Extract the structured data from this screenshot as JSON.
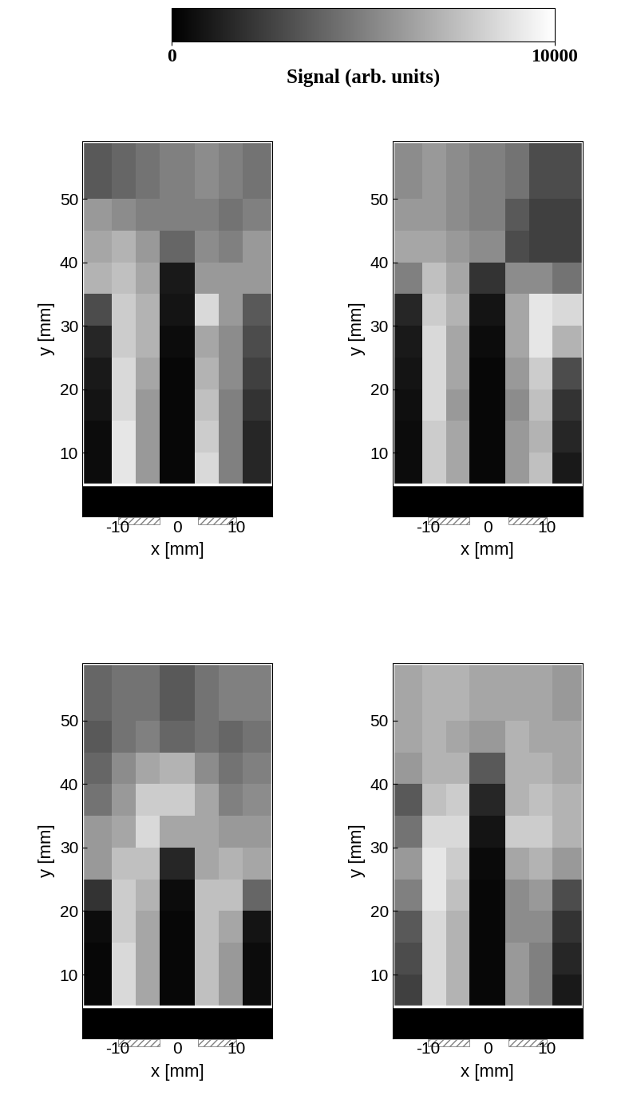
{
  "colorbar": {
    "label": "Signal (arb. units)",
    "range": [
      0,
      10000
    ],
    "ticks": [
      0,
      10000
    ]
  },
  "chart_data": [
    {
      "type": "heatmap",
      "xlabel": "x [mm]",
      "ylabel": "y [mm]",
      "xlim": [
        -16,
        16
      ],
      "ylim": [
        0,
        59
      ],
      "xticks": [
        -10,
        0,
        10
      ],
      "yticks": [
        10,
        20,
        30,
        40,
        50
      ],
      "hatched_spans": [
        [
          -10,
          -3
        ],
        [
          3.5,
          10
        ]
      ],
      "x_edges": [
        -16,
        -11,
        -7,
        -3,
        3,
        7,
        11,
        16
      ],
      "y_edges": [
        0,
        5,
        10,
        15,
        20,
        25,
        30,
        35,
        40,
        45,
        50,
        59
      ],
      "cells": [
        [
          0,
          0,
          0,
          0,
          0,
          0,
          0
        ],
        [
          500,
          9000,
          6000,
          300,
          8500,
          5000,
          1500
        ],
        [
          500,
          9000,
          6000,
          300,
          8000,
          5000,
          1500
        ],
        [
          800,
          8500,
          6000,
          300,
          7500,
          5000,
          2000
        ],
        [
          1000,
          8500,
          6500,
          300,
          7000,
          5500,
          2500
        ],
        [
          1500,
          8000,
          7000,
          500,
          6500,
          5500,
          3000
        ],
        [
          3000,
          8000,
          7000,
          800,
          8500,
          6000,
          3500
        ],
        [
          7000,
          7500,
          6500,
          1000,
          6000,
          6000,
          6000
        ],
        [
          6500,
          7000,
          6000,
          4000,
          5500,
          5000,
          6000
        ],
        [
          6000,
          5500,
          5000,
          5000,
          5000,
          4500,
          5000
        ],
        [
          3500,
          4000,
          4500,
          5000,
          5500,
          5000,
          4500
        ]
      ]
    },
    {
      "type": "heatmap",
      "xlabel": "x [mm]",
      "ylabel": "y [mm]",
      "xlim": [
        -16,
        16
      ],
      "ylim": [
        0,
        59
      ],
      "xticks": [
        -10,
        0,
        10
      ],
      "yticks": [
        10,
        20,
        30,
        40,
        50
      ],
      "hatched_spans": [
        [
          -10,
          -3
        ],
        [
          3.5,
          10
        ]
      ],
      "x_edges": [
        -16,
        -11,
        -7,
        -3,
        3,
        7,
        11,
        16
      ],
      "y_edges": [
        0,
        5,
        10,
        15,
        20,
        25,
        30,
        35,
        40,
        45,
        50,
        59
      ],
      "cells": [
        [
          0,
          0,
          0,
          0,
          0,
          0,
          0
        ],
        [
          500,
          8000,
          6500,
          300,
          6000,
          7500,
          1000
        ],
        [
          500,
          8000,
          6500,
          300,
          6000,
          7000,
          1500
        ],
        [
          600,
          8500,
          6000,
          300,
          5500,
          7500,
          2000
        ],
        [
          800,
          8500,
          6500,
          300,
          6000,
          8000,
          3000
        ],
        [
          1000,
          8500,
          6500,
          500,
          6500,
          9000,
          7000
        ],
        [
          1500,
          8000,
          7000,
          800,
          6500,
          9000,
          8500
        ],
        [
          5000,
          7500,
          6500,
          2000,
          5500,
          5500,
          4500
        ],
        [
          6500,
          6500,
          6000,
          5500,
          3000,
          2500,
          2500
        ],
        [
          6000,
          6000,
          5500,
          5000,
          3500,
          2500,
          2500
        ],
        [
          5500,
          6000,
          5500,
          5000,
          4500,
          3000,
          3000
        ]
      ]
    },
    {
      "type": "heatmap",
      "xlabel": "x [mm]",
      "ylabel": "y [mm]",
      "xlim": [
        -16,
        16
      ],
      "ylim": [
        0,
        59
      ],
      "xticks": [
        -10,
        0,
        10
      ],
      "yticks": [
        10,
        20,
        30,
        40,
        50
      ],
      "hatched_spans": [
        [
          -10,
          -3
        ],
        [
          3.5,
          10
        ]
      ],
      "x_edges": [
        -16,
        -11,
        -7,
        -3,
        3,
        7,
        11,
        16
      ],
      "y_edges": [
        0,
        5,
        10,
        15,
        20,
        25,
        30,
        35,
        40,
        45,
        50,
        59
      ],
      "cells": [
        [
          0,
          0,
          0,
          0,
          0,
          0,
          0
        ],
        [
          300,
          8500,
          6500,
          300,
          7500,
          6000,
          500
        ],
        [
          300,
          8500,
          6500,
          300,
          7500,
          6000,
          500
        ],
        [
          500,
          8000,
          6500,
          300,
          7500,
          6500,
          800
        ],
        [
          2000,
          8000,
          7000,
          500,
          7500,
          7500,
          4000
        ],
        [
          6000,
          7500,
          7500,
          1500,
          6500,
          7000,
          6500
        ],
        [
          6000,
          6500,
          8500,
          6500,
          6500,
          6000,
          6000
        ],
        [
          4500,
          6000,
          8000,
          8000,
          6500,
          5000,
          5500
        ],
        [
          4000,
          5500,
          6500,
          7000,
          5500,
          4500,
          5000
        ],
        [
          3500,
          4500,
          5000,
          4000,
          4500,
          4000,
          4500
        ],
        [
          4000,
          4500,
          4500,
          3500,
          4500,
          5000,
          5000
        ]
      ]
    },
    {
      "type": "heatmap",
      "xlabel": "x [mm]",
      "ylabel": "y [mm]",
      "xlim": [
        -16,
        16
      ],
      "ylim": [
        0,
        59
      ],
      "xticks": [
        -10,
        0,
        10
      ],
      "yticks": [
        10,
        20,
        30,
        40,
        50
      ],
      "hatched_spans": [
        [
          -10,
          -3
        ],
        [
          3.5,
          10
        ]
      ],
      "x_edges": [
        -16,
        -11,
        -7,
        -3,
        3,
        7,
        11,
        16
      ],
      "y_edges": [
        0,
        5,
        10,
        15,
        20,
        25,
        30,
        35,
        40,
        45,
        50,
        59
      ],
      "cells": [
        [
          0,
          0,
          0,
          0,
          0,
          0,
          0
        ],
        [
          2500,
          8500,
          7000,
          300,
          6000,
          5000,
          1000
        ],
        [
          3000,
          8500,
          7000,
          300,
          6000,
          5000,
          1500
        ],
        [
          3500,
          8500,
          7000,
          300,
          5500,
          5500,
          2000
        ],
        [
          5000,
          9000,
          7500,
          300,
          5500,
          6000,
          3000
        ],
        [
          6000,
          9000,
          8000,
          400,
          6500,
          7000,
          6000
        ],
        [
          4500,
          8500,
          8500,
          800,
          8000,
          8000,
          7000
        ],
        [
          3500,
          7500,
          8000,
          1500,
          7000,
          7500,
          7000
        ],
        [
          6000,
          7000,
          7000,
          3500,
          7000,
          7000,
          6500
        ],
        [
          6500,
          7000,
          6500,
          6000,
          7000,
          6500,
          6500
        ],
        [
          6500,
          7000,
          7000,
          6500,
          6500,
          6500,
          6000
        ]
      ]
    }
  ]
}
